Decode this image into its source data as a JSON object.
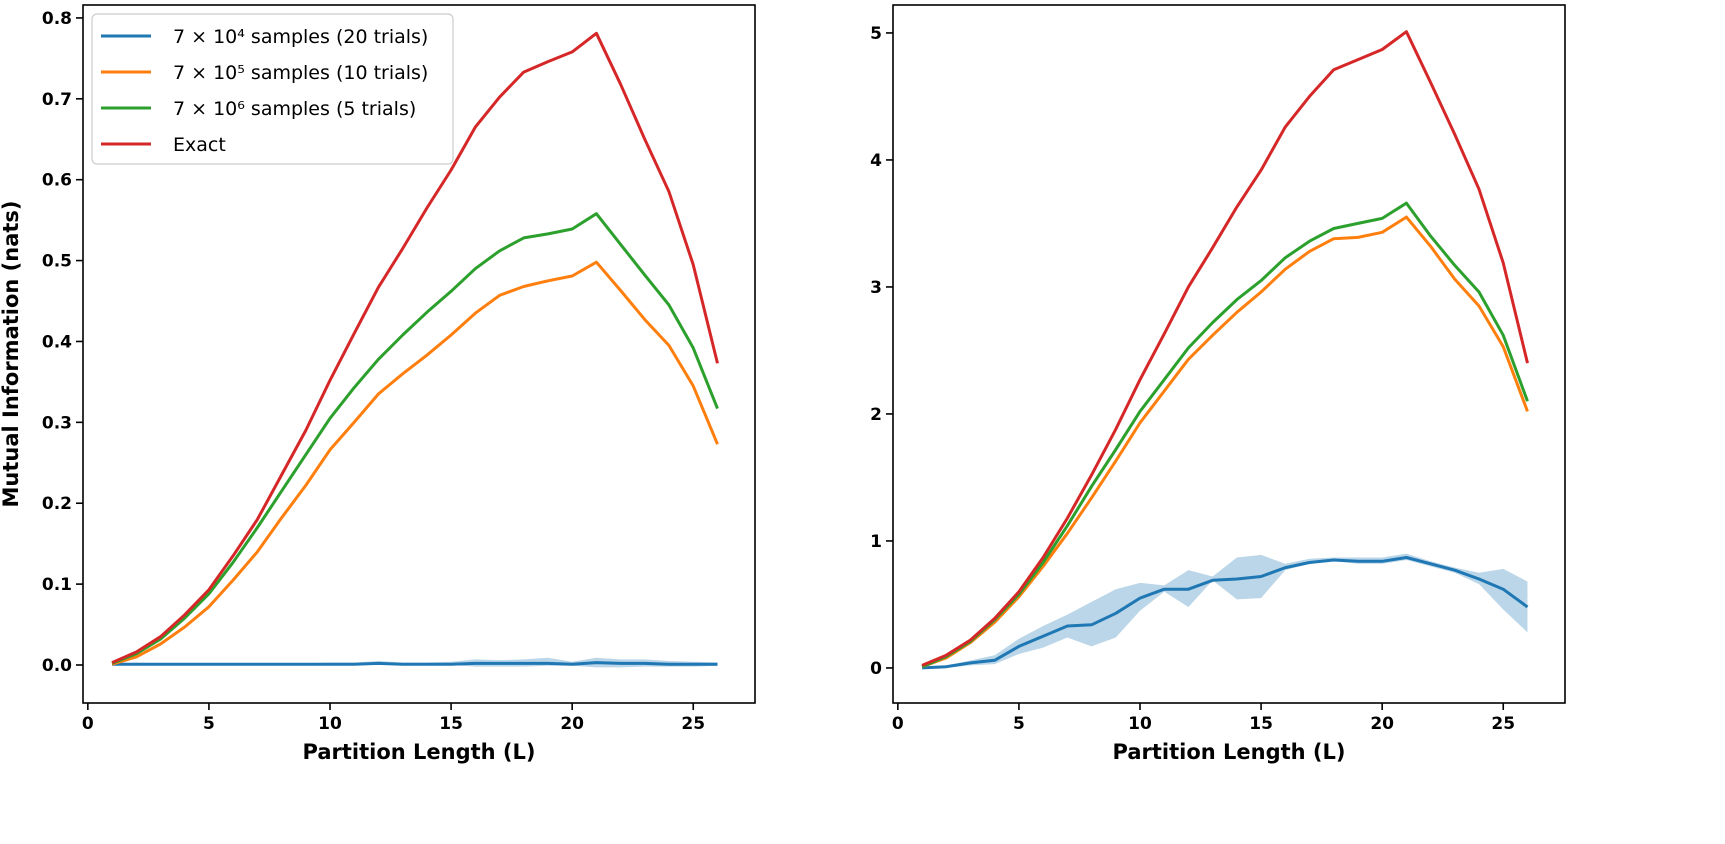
{
  "chart_data": [
    {
      "type": "line",
      "xlabel": "Partition Length (L)",
      "ylabel": "Mutual Information (nats)",
      "xlim": [
        -0.2,
        27.55
      ],
      "ylim": [
        -0.047,
        0.816
      ],
      "xticks": [
        0,
        5,
        10,
        15,
        20,
        25
      ],
      "xtick_labels": [
        "0",
        "5",
        "10",
        "15",
        "20",
        "25"
      ],
      "yticks": [
        0.0,
        0.1,
        0.2,
        0.3,
        0.4,
        0.5,
        0.6,
        0.7,
        0.8
      ],
      "ytick_labels": [
        "0.0",
        "0.1",
        "0.2",
        "0.3",
        "0.4",
        "0.5",
        "0.6",
        "0.7",
        "0.8"
      ],
      "grid": false,
      "legend_placement": "top-left",
      "x": [
        1,
        2,
        3,
        4,
        5,
        6,
        7,
        8,
        9,
        10,
        11,
        12,
        13,
        14,
        15,
        16,
        17,
        18,
        19,
        20,
        21,
        22,
        23,
        24,
        25,
        26
      ],
      "series": [
        {
          "name": "7 × 10⁴ samples (20 trials)",
          "color": "#1f77b4",
          "values": [
            0.001,
            0.001,
            0.001,
            0.001,
            0.001,
            0.001,
            0.001,
            0.001,
            0.001,
            0.001,
            0.001,
            0.002,
            0.001,
            0.001,
            0.001,
            0.002,
            0.002,
            0.002,
            0.002,
            0.001,
            0.003,
            0.002,
            0.002,
            0.001,
            0.001,
            0.001
          ],
          "band_low": [
            0,
            0,
            0,
            0,
            0,
            0,
            0,
            0,
            0,
            0,
            0,
            0,
            0,
            0,
            0,
            -0.002,
            -0.002,
            -0.002,
            -0.001,
            -0.001,
            -0.003,
            -0.003,
            -0.002,
            -0.002,
            -0.002,
            -0.001
          ],
          "band_high": [
            0.002,
            0.002,
            0.002,
            0.002,
            0.002,
            0.002,
            0.002,
            0.002,
            0.002,
            0.003,
            0.003,
            0.005,
            0.003,
            0.003,
            0.004,
            0.007,
            0.006,
            0.007,
            0.009,
            0.004,
            0.009,
            0.007,
            0.007,
            0.005,
            0.004,
            0.003
          ]
        },
        {
          "name": "7 × 10⁵ samples (10 trials)",
          "color": "#ff7f0e",
          "values": [
            0.001,
            0.01,
            0.026,
            0.047,
            0.072,
            0.105,
            0.14,
            0.182,
            0.222,
            0.266,
            0.3,
            0.335,
            0.36,
            0.383,
            0.408,
            0.435,
            0.457,
            0.468,
            0.475,
            0.481,
            0.498,
            0.463,
            0.427,
            0.395,
            0.345,
            0.273
          ]
        },
        {
          "name": "7 × 10⁶ samples (5 trials)",
          "color": "#2ca02c",
          "values": [
            0.002,
            0.014,
            0.032,
            0.058,
            0.088,
            0.127,
            0.17,
            0.215,
            0.26,
            0.305,
            0.343,
            0.378,
            0.408,
            0.436,
            0.462,
            0.49,
            0.512,
            0.528,
            0.533,
            0.539,
            0.558,
            0.52,
            0.482,
            0.445,
            0.392,
            0.317
          ]
        },
        {
          "name": "Exact",
          "color": "#d62728",
          "values": [
            0.003,
            0.016,
            0.035,
            0.062,
            0.093,
            0.135,
            0.18,
            0.235,
            0.29,
            0.352,
            0.41,
            0.467,
            0.515,
            0.565,
            0.612,
            0.665,
            0.702,
            0.733,
            0.746,
            0.758,
            0.781,
            0.718,
            0.65,
            0.585,
            0.495,
            0.373
          ]
        }
      ]
    },
    {
      "type": "line",
      "xlabel": "Partition Length (L)",
      "ylabel": "",
      "xlim": [
        -0.2,
        27.55
      ],
      "ylim": [
        -0.276,
        5.22
      ],
      "xticks": [
        0,
        5,
        10,
        15,
        20,
        25
      ],
      "xtick_labels": [
        "0",
        "5",
        "10",
        "15",
        "20",
        "25"
      ],
      "yticks": [
        0,
        1,
        2,
        3,
        4,
        5
      ],
      "ytick_labels": [
        "0",
        "1",
        "2",
        "3",
        "4",
        "5"
      ],
      "grid": false,
      "x": [
        1,
        2,
        3,
        4,
        5,
        6,
        7,
        8,
        9,
        10,
        11,
        12,
        13,
        14,
        15,
        16,
        17,
        18,
        19,
        20,
        21,
        22,
        23,
        24,
        25,
        26
      ],
      "series": [
        {
          "color": "#1f77b4",
          "values": [
            0,
            0.01,
            0.04,
            0.06,
            0.17,
            0.25,
            0.33,
            0.34,
            0.43,
            0.55,
            0.62,
            0.62,
            0.69,
            0.7,
            0.72,
            0.79,
            0.83,
            0.85,
            0.84,
            0.84,
            0.87,
            0.82,
            0.77,
            0.7,
            0.62,
            0.48
          ],
          "band_low": [
            0,
            0,
            0.02,
            0.03,
            0.11,
            0.16,
            0.24,
            0.17,
            0.24,
            0.45,
            0.6,
            0.48,
            0.69,
            0.54,
            0.55,
            0.77,
            0.82,
            0.84,
            0.82,
            0.82,
            0.85,
            0.8,
            0.75,
            0.66,
            0.46,
            0.28
          ],
          "band_high": [
            0.01,
            0.02,
            0.06,
            0.1,
            0.23,
            0.33,
            0.42,
            0.52,
            0.62,
            0.67,
            0.65,
            0.77,
            0.72,
            0.87,
            0.89,
            0.82,
            0.86,
            0.87,
            0.87,
            0.87,
            0.9,
            0.84,
            0.79,
            0.75,
            0.78,
            0.68
          ]
        },
        {
          "color": "#ff7f0e",
          "values": [
            0.01,
            0.08,
            0.2,
            0.36,
            0.56,
            0.8,
            1.06,
            1.34,
            1.63,
            1.93,
            2.18,
            2.43,
            2.62,
            2.8,
            2.96,
            3.14,
            3.28,
            3.38,
            3.39,
            3.43,
            3.55,
            3.32,
            3.06,
            2.85,
            2.53,
            2.02
          ]
        },
        {
          "color": "#2ca02c",
          "values": [
            0.01,
            0.09,
            0.21,
            0.38,
            0.58,
            0.83,
            1.12,
            1.43,
            1.72,
            2.02,
            2.27,
            2.52,
            2.72,
            2.9,
            3.05,
            3.23,
            3.36,
            3.46,
            3.5,
            3.54,
            3.66,
            3.4,
            3.17,
            2.96,
            2.62,
            2.1
          ]
        },
        {
          "color": "#d62728",
          "values": [
            0.02,
            0.1,
            0.22,
            0.39,
            0.6,
            0.87,
            1.18,
            1.52,
            1.88,
            2.27,
            2.63,
            3.0,
            3.31,
            3.63,
            3.92,
            4.26,
            4.5,
            4.71,
            4.79,
            4.87,
            5.01,
            4.61,
            4.2,
            3.77,
            3.19,
            2.4
          ]
        }
      ]
    }
  ]
}
